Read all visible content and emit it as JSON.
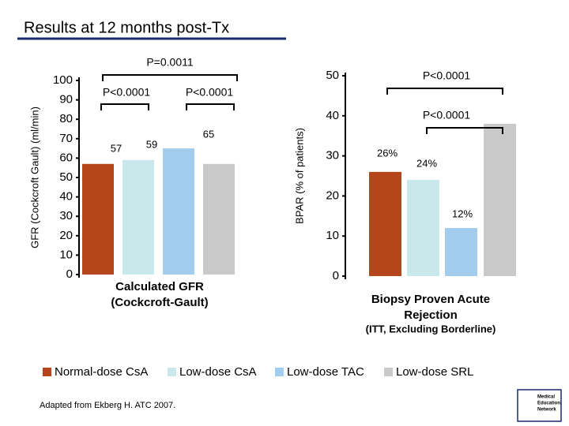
{
  "title": "Results at 12 months post-Tx",
  "legend": [
    {
      "name": "Normal-dose CsA",
      "color": "#b5451b"
    },
    {
      "name": "Low-dose CsA",
      "color": "#c8e8ec"
    },
    {
      "name": "Low-dose TAC",
      "color": "#a3cdee"
    },
    {
      "name": "Low-dose SRL",
      "color": "#c9c9c9"
    }
  ],
  "chart_data": [
    {
      "type": "bar",
      "y_label": "GFR (Cockcroft Gault) (ml/min)",
      "x_label": [
        "Calculated GFR",
        "(Cockcroft-Gault)"
      ],
      "values": [
        57,
        59,
        65,
        57
      ],
      "value_labels": [
        "57",
        "59",
        "65",
        null
      ],
      "ylim": [
        0,
        100
      ],
      "yticks": [
        0,
        10,
        20,
        30,
        40,
        50,
        60,
        70,
        80,
        90,
        100
      ],
      "annotations": [
        "P=0.0011",
        "P<0.0001",
        "P<0.0001"
      ]
    },
    {
      "type": "bar",
      "y_label": "BPAR (% of patients)",
      "x_label": [
        "Biopsy Proven Acute",
        "Rejection"
      ],
      "x_sublabel": "(ITT, Excluding Borderline)",
      "values": [
        26,
        24,
        12,
        38
      ],
      "value_labels": [
        "26%",
        "24%",
        "12%",
        null
      ],
      "ylim": [
        0,
        50
      ],
      "yticks": [
        0,
        10,
        20,
        30,
        40,
        50
      ],
      "annotations": [
        "P<0.0001",
        "P<0.0001"
      ]
    }
  ],
  "footnote": "Adapted from Ekberg H. ATC 2007.",
  "logo": [
    "Medical",
    "Education",
    "Network"
  ]
}
